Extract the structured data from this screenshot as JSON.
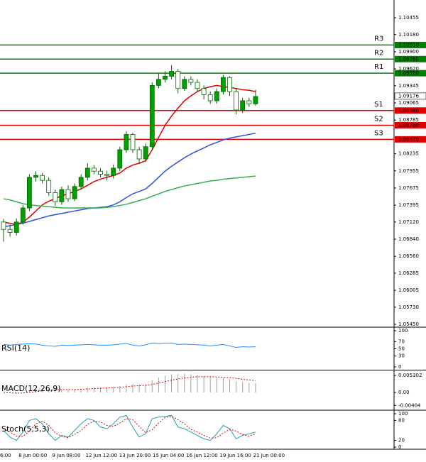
{
  "chart_data": [
    {
      "type": "candlestick",
      "open": [
        1.0712,
        1.07,
        1.0695,
        1.0712,
        1.0735,
        1.0785,
        1.0788,
        1.078,
        1.076,
        1.0745,
        1.0765,
        1.075,
        1.077,
        1.0785,
        1.08,
        1.0795,
        1.079,
        1.0788,
        1.08,
        1.083,
        1.0855,
        1.083,
        1.0815,
        1.0835,
        1.0935,
        1.0945,
        1.095,
        1.0958,
        1.093,
        1.0945,
        1.094,
        1.093,
        1.092,
        1.091,
        1.0925,
        1.0948,
        1.0925,
        1.0895,
        1.091,
        1.0905
      ],
      "high": [
        1.0717,
        1.0708,
        1.0718,
        1.074,
        1.079,
        1.0795,
        1.0792,
        1.0785,
        1.0765,
        1.077,
        1.0772,
        1.0775,
        1.079,
        1.0808,
        1.0805,
        1.08,
        1.0796,
        1.0806,
        1.0835,
        1.086,
        1.0858,
        1.0835,
        1.084,
        1.094,
        1.0955,
        1.0958,
        1.0968,
        1.0962,
        1.095,
        1.095,
        1.0945,
        1.0935,
        1.0925,
        1.093,
        1.0952,
        1.095,
        1.093,
        1.0915,
        1.0915,
        1.0928
      ],
      "low": [
        1.068,
        1.0688,
        1.069,
        1.0708,
        1.073,
        1.0778,
        1.0775,
        1.0755,
        1.0738,
        1.074,
        1.0745,
        1.0746,
        1.0765,
        1.078,
        1.079,
        1.0785,
        1.078,
        1.0783,
        1.0795,
        1.0825,
        1.0825,
        1.0808,
        1.081,
        1.083,
        1.093,
        1.094,
        1.0945,
        1.0922,
        1.0926,
        1.0935,
        1.0925,
        1.0912,
        1.0905,
        1.0905,
        1.092,
        1.0918,
        1.0888,
        1.089,
        1.09,
        1.0902
      ],
      "close": [
        1.07,
        1.0695,
        1.0712,
        1.0735,
        1.0785,
        1.0788,
        1.078,
        1.076,
        1.0745,
        1.0765,
        1.075,
        1.077,
        1.0785,
        1.08,
        1.0795,
        1.079,
        1.0788,
        1.08,
        1.083,
        1.0855,
        1.083,
        1.0815,
        1.0835,
        1.0935,
        1.0945,
        1.095,
        1.0958,
        1.093,
        1.0945,
        1.094,
        1.093,
        1.092,
        1.091,
        1.0925,
        1.0948,
        1.0925,
        1.0895,
        1.091,
        1.0905,
        1.0917
      ],
      "color_up": "#00a000",
      "color_down": "#ffffff",
      "wick_color": "#006400",
      "lines": [
        {
          "color": "#e00000",
          "values": [
            1.0712,
            1.071,
            1.0708,
            1.0712,
            1.072,
            1.073,
            1.074,
            1.0746,
            1.075,
            1.0755,
            1.0758,
            1.0762,
            1.0766,
            1.0772,
            1.0778,
            1.0782,
            1.0785,
            1.0788,
            1.0792,
            1.08,
            1.0805,
            1.0808,
            1.0812,
            1.083,
            1.085,
            1.087,
            1.0885,
            1.0898,
            1.091,
            1.0918,
            1.0925,
            1.093,
            1.0933,
            1.0935,
            1.0933,
            1.0932,
            1.093,
            1.0928,
            1.0927,
            1.0925
          ]
        },
        {
          "color": "#3050e0",
          "values": [
            1.0704,
            1.0706,
            1.0708,
            1.071,
            1.0713,
            1.0716,
            1.0719,
            1.0722,
            1.0724,
            1.0726,
            1.0728,
            1.073,
            1.0732,
            1.0734,
            1.0735,
            1.0736,
            1.0737,
            1.074,
            1.0745,
            1.0752,
            1.0758,
            1.0762,
            1.0766,
            1.0775,
            1.0785,
            1.0795,
            1.0803,
            1.081,
            1.0817,
            1.0823,
            1.0828,
            1.0833,
            1.0838,
            1.0842,
            1.0846,
            1.0849,
            1.0851,
            1.0853,
            1.0855,
            1.0857
          ]
        },
        {
          "color": "#30b050",
          "values": [
            1.075,
            1.0748,
            1.0745,
            1.0742,
            1.074,
            1.0739,
            1.0738,
            1.0737,
            1.0736,
            1.0735,
            1.0735,
            1.0735,
            1.0735,
            1.0735,
            1.0735,
            1.0735,
            1.0736,
            1.0737,
            1.0739,
            1.0741,
            1.0744,
            1.0747,
            1.075,
            1.0754,
            1.0758,
            1.0762,
            1.0765,
            1.0768,
            1.0771,
            1.0773,
            1.0775,
            1.0777,
            1.0779,
            1.078,
            1.0782,
            1.0783,
            1.0784,
            1.0785,
            1.0786,
            1.0787
          ]
        }
      ],
      "levels": [
        {
          "name": "R3",
          "value": 1.1001,
          "value_label": "1.10010",
          "color": "#008000"
        },
        {
          "name": "R2",
          "value": 1.0978,
          "value_label": "1.09780",
          "color": "#008000"
        },
        {
          "name": "R1",
          "value": 1.0955,
          "value_label": "1.09550",
          "color": "#008000"
        },
        {
          "name": "S1",
          "value": 1.0894,
          "value_label": "1.08940",
          "color": "#e00000"
        },
        {
          "name": "S2",
          "value": 1.087,
          "value_label": "1.08700",
          "color": "#e00000"
        },
        {
          "name": "S3",
          "value": 1.0847,
          "value_label": "1.08470",
          "color": "#e00000"
        }
      ],
      "last_price": 1.09176,
      "ylim": [
        1.05415,
        1.10745
      ],
      "yticks": [
        1.10455,
        {
          "value": 1.1018,
          "label": "1.10180"
        },
        {
          "value": 1.099,
          "label": "1.09900"
        },
        {
          "value": 1.0962,
          "label": "1.09620"
        },
        1.09345,
        1.09065,
        1.08785,
        1.08235,
        1.07955,
        1.07675,
        1.07395,
        {
          "value": 1.0712,
          "label": "1.07120"
        },
        {
          "value": 1.0684,
          "label": "1.06840"
        },
        {
          "value": 1.0656,
          "label": "1.06560"
        },
        1.06285,
        1.06005,
        {
          "value": 1.0573,
          "label": "1.05730"
        },
        {
          "value": 1.0545,
          "label": "1.05450"
        }
      ],
      "x_tick_labels": [
        "6:00",
        "8 Jun 00:00",
        "9 Jun 08:00",
        "12 Jun 12:00",
        "13 Jun 20:00",
        "15 Jun 04:00",
        "16 Jun 12:00",
        "19 Jun 16:00",
        "21 Jun 00:00"
      ]
    },
    {
      "type": "line",
      "title": "RSI(14)",
      "color": "#1e90ff",
      "values": [
        62,
        60,
        62,
        63,
        64,
        63,
        60,
        58,
        57,
        60,
        59,
        60,
        61,
        62,
        61,
        60,
        60,
        61,
        63,
        65,
        60,
        58,
        61,
        66,
        65,
        66,
        66,
        62,
        63,
        62,
        61,
        60,
        58,
        60,
        62,
        58,
        54,
        56,
        55,
        56
      ],
      "ylim": [
        -6,
        108
      ],
      "yticks": [
        100,
        70,
        50,
        30,
        0
      ]
    },
    {
      "type": "macd",
      "title": "MACD(12,26,9)",
      "histogram_color": "#a0a0a0",
      "signal_color": "#e00000",
      "histogram": [
        0,
        -0.0003,
        -0.0004,
        -0.0002,
        0.0005,
        0.001,
        0.0012,
        0.0011,
        0.0009,
        0.001,
        0.0009,
        0.001,
        0.0012,
        0.0015,
        0.0016,
        0.0016,
        0.0016,
        0.0017,
        0.002,
        0.0025,
        0.0026,
        0.0025,
        0.0026,
        0.0038,
        0.0046,
        0.0052,
        0.0057,
        0.0057,
        0.0058,
        0.0057,
        0.0055,
        0.0051,
        0.0047,
        0.0045,
        0.0045,
        0.0041,
        0.0035,
        0.0033,
        0.003,
        0.0029
      ],
      "signal": [
        0,
        -0.0001,
        -0.0002,
        -0.0002,
        0,
        0.0003,
        0.0005,
        0.0007,
        0.0008,
        0.0009,
        0.0009,
        0.0009,
        0.001,
        0.0011,
        0.0012,
        0.0013,
        0.0014,
        0.0015,
        0.0016,
        0.0018,
        0.002,
        0.0021,
        0.0022,
        0.0025,
        0.0029,
        0.0034,
        0.0038,
        0.0042,
        0.0045,
        0.0047,
        0.0049,
        0.0049,
        0.0049,
        0.0048,
        0.0047,
        0.0046,
        0.0044,
        0.0041,
        0.0039,
        0.0037
      ],
      "ylim": [
        -0.0053,
        0.00663
      ],
      "yticks": [
        0.005302,
        {
          "value": 0,
          "label": "0.00"
        },
        -0.00404
      ]
    },
    {
      "type": "stochastic",
      "title": "Stoch(5,5,3)",
      "main_color": "#20a0b0",
      "signal_color": "#e00000",
      "main": [
        50,
        30,
        20,
        45,
        80,
        85,
        70,
        40,
        20,
        35,
        30,
        50,
        70,
        85,
        80,
        60,
        55,
        70,
        90,
        95,
        60,
        30,
        40,
        85,
        90,
        92,
        95,
        60,
        55,
        45,
        35,
        25,
        20,
        40,
        65,
        55,
        25,
        35,
        40,
        45
      ],
      "signal": [
        55,
        45,
        33,
        32,
        48,
        70,
        78,
        65,
        43,
        32,
        28,
        38,
        50,
        68,
        78,
        75,
        65,
        62,
        72,
        85,
        82,
        62,
        43,
        52,
        72,
        89,
        92,
        82,
        70,
        53,
        45,
        35,
        27,
        28,
        42,
        53,
        48,
        38,
        33,
        40
      ],
      "ylim": [
        -4.3,
        108.5
      ],
      "yticks": [
        100,
        80,
        20,
        0
      ]
    }
  ]
}
